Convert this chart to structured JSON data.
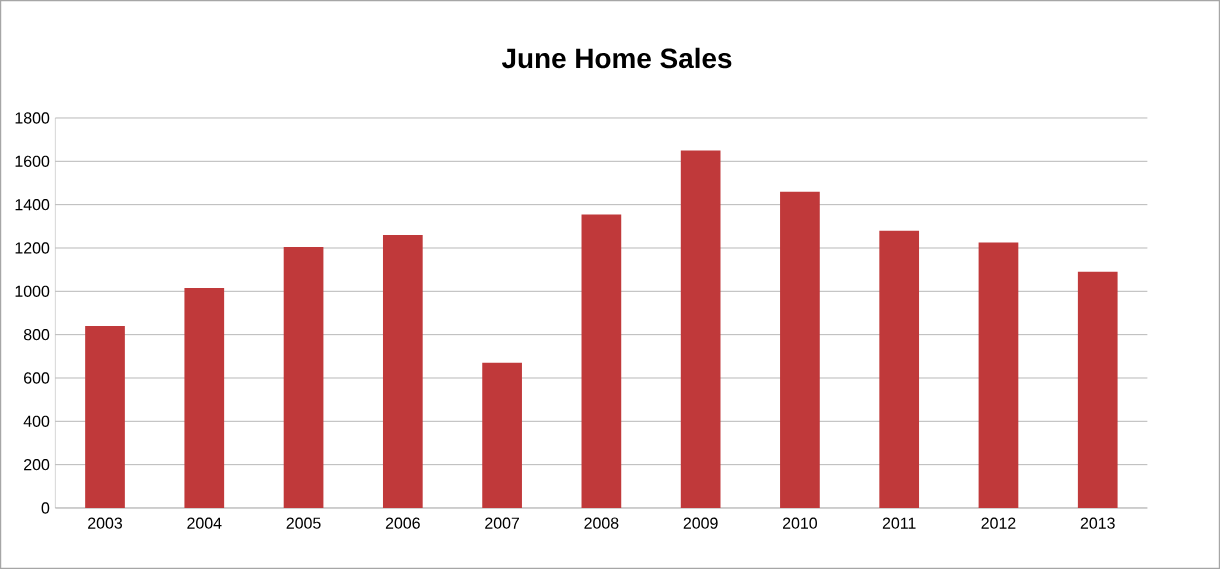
{
  "chart_data": {
    "type": "bar",
    "title": "June Home Sales",
    "categories": [
      "2003",
      "2004",
      "2005",
      "2006",
      "2007",
      "2008",
      "2009",
      "2010",
      "2011",
      "2012",
      "2013"
    ],
    "values": [
      840,
      1015,
      1205,
      1260,
      670,
      1355,
      1650,
      1460,
      1280,
      1225,
      1090
    ],
    "color": "#c0393a",
    "ylim": [
      0,
      1800
    ],
    "yticks": [
      0,
      200,
      400,
      600,
      800,
      1000,
      1200,
      1400,
      1600,
      1800
    ],
    "grid": "y"
  }
}
